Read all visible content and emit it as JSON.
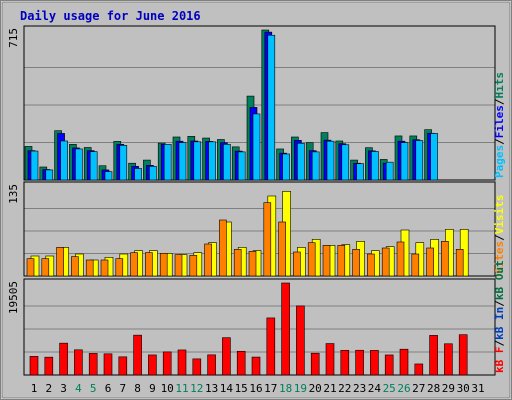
{
  "chart_data": {
    "title": "Daily usage for June 2016",
    "type": "bar",
    "categories": [
      "1",
      "2",
      "3",
      "4",
      "5",
      "6",
      "7",
      "8",
      "9",
      "10",
      "11",
      "12",
      "13",
      "14",
      "15",
      "16",
      "17",
      "18",
      "19",
      "20",
      "21",
      "22",
      "23",
      "24",
      "25",
      "26",
      "27",
      "28",
      "29",
      "30",
      "31"
    ],
    "weekend_days": [
      4,
      5,
      11,
      12,
      18,
      19,
      25,
      26
    ],
    "colors": {
      "hits": "#00805c",
      "files": "#0000ff",
      "pages": "#00c0ff",
      "visits": "#ffff00",
      "sites": "#ff8000",
      "kb_in": "#0040c0",
      "kb_out": "#007040",
      "kb_f": "#ff0000",
      "weekend_label": "#00805c",
      "weekday_label": "#000000",
      "title": "#0000c0",
      "panel": "#c0c0c0"
    },
    "panels": [
      {
        "axis_max_label": "715",
        "ymax": 715,
        "legend": [
          "Pages",
          "Files",
          "Hits"
        ],
        "legend_seps": [
          "/",
          "/"
        ],
        "series": [
          {
            "name": "Hits",
            "values": [
              160,
              62,
              235,
              170,
              155,
              68,
              184,
              80,
              95,
              176,
              205,
              208,
              200,
              193,
              158,
              400,
              715,
              148,
              205,
              178,
              226,
              186,
              95,
              154,
              98,
              210,
              210,
              240,
              0,
              0,
              0
            ]
          },
          {
            "name": "Files",
            "values": [
              140,
              50,
              222,
              153,
              140,
              48,
              170,
              65,
              70,
              170,
              185,
              186,
              184,
              178,
              138,
              346,
              705,
              128,
              189,
              140,
              190,
              173,
              80,
              139,
              80,
              185,
              192,
              223,
              0,
              0,
              0
            ]
          },
          {
            "name": "Pages",
            "values": [
              138,
              48,
              186,
              148,
              135,
              40,
              165,
              55,
              65,
              170,
              178,
              182,
              182,
              170,
              134,
              315,
              690,
              124,
              175,
              134,
              185,
              168,
              78,
              136,
              85,
              178,
              188,
              222,
              0,
              0,
              0
            ]
          }
        ]
      },
      {
        "axis_max_label": "135",
        "ymax": 135,
        "legend": [
          "Sites",
          "Visits"
        ],
        "legend_seps": [
          "/"
        ],
        "series": [
          {
            "name": "Visits",
            "values": [
              30,
              30,
              43,
              33,
              24,
              28,
              33,
              38,
              38,
              34,
              32,
              35,
              50,
              81,
              43,
              38,
              120,
              127,
              43,
              55,
              46,
              47,
              52,
              38,
              44,
              69,
              50,
              55,
              70,
              70,
              0
            ]
          },
          {
            "name": "Sites",
            "values": [
              26,
              26,
              43,
              29,
              24,
              24,
              26,
              35,
              35,
              34,
              32,
              31,
              48,
              84,
              40,
              37,
              110,
              81,
              36,
              50,
              46,
              46,
              40,
              33,
              42,
              51,
              33,
              42,
              52,
              40,
              0
            ]
          }
        ]
      },
      {
        "axis_max_label": "19505",
        "ymax": 19505,
        "legend": [
          "kB F",
          "kB In",
          "kB Out"
        ],
        "legend_seps": [
          "/",
          "/",
          "/"
        ],
        "series": [
          {
            "name": "kB F",
            "values": [
              3950,
              3780,
              6750,
              5340,
              4580,
              4490,
              3850,
              8450,
              4250,
              4900,
              5310,
              3420,
              4270,
              7910,
              5030,
              3800,
              12100,
              19505,
              14650,
              4620,
              6670,
              5240,
              5250,
              5220,
              4250,
              5470,
              2340,
              8400,
              6620,
              8550,
              0
            ]
          }
        ]
      }
    ]
  }
}
